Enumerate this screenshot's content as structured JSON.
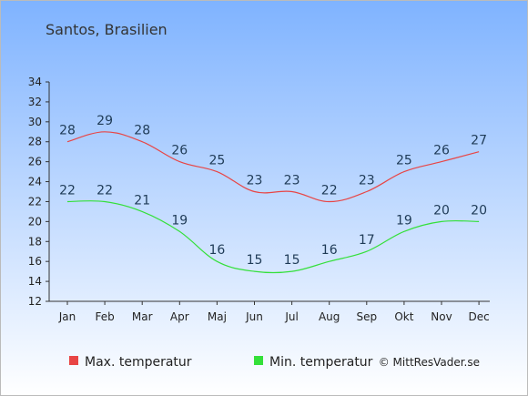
{
  "title": "Santos, Brasilien",
  "copyright": "© MittResVader.se",
  "colors": {
    "background_top": "#7fb3ff",
    "background_bottom": "#ffffff",
    "max_series": "#e84545",
    "min_series": "#34e03a",
    "data_label": "#1f3b57"
  },
  "chart_data": {
    "type": "line",
    "title": "Santos, Brasilien",
    "categories": [
      "Jan",
      "Feb",
      "Mar",
      "Apr",
      "Maj",
      "Jun",
      "Jul",
      "Aug",
      "Sep",
      "Okt",
      "Nov",
      "Dec"
    ],
    "ylim": [
      12,
      34
    ],
    "yticks": [
      12,
      14,
      16,
      18,
      20,
      22,
      24,
      26,
      28,
      30,
      32,
      34
    ],
    "grid": false,
    "legend_position": "bottom-left",
    "series": [
      {
        "name": "Max. temperatur",
        "color": "#e84545",
        "values": [
          28,
          29,
          28,
          26,
          25,
          23,
          23,
          22,
          23,
          25,
          26,
          27
        ]
      },
      {
        "name": "Min. temperatur",
        "color": "#34e03a",
        "values": [
          22,
          22,
          21,
          19,
          16,
          15,
          15,
          16,
          17,
          19,
          20,
          20
        ]
      }
    ]
  }
}
